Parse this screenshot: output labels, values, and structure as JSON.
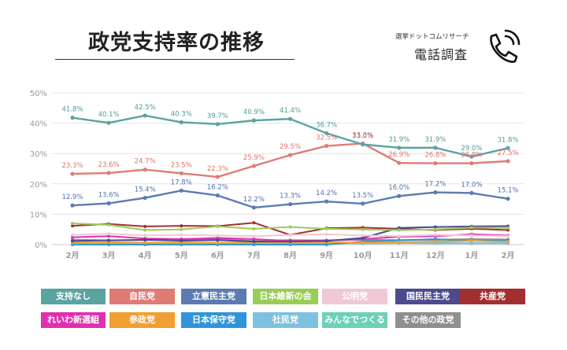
{
  "header": {
    "title": "政党支持率の推移",
    "org": "選挙ドットコムリサーチ",
    "survey": "電話調査",
    "icon": "phone-icon"
  },
  "chart_data": {
    "type": "line",
    "title": "政党支持率の推移",
    "categories": [
      "2月",
      "3月",
      "4月",
      "5月",
      "6月",
      "7月",
      "8月",
      "9月",
      "10月",
      "11月",
      "12月",
      "1月",
      "2月"
    ],
    "y_ticks": [
      "0%",
      "10%",
      "20%",
      "30%",
      "40%",
      "50%"
    ],
    "ylim": [
      0,
      50
    ],
    "grid": true,
    "legend_position": "bottom",
    "series": [
      {
        "name": "支持なし",
        "color": "#5aa3a3",
        "label_color": "#4d9a9a",
        "values": [
          41.8,
          40.1,
          42.5,
          40.3,
          39.7,
          40.9,
          41.4,
          36.7,
          33.0,
          31.9,
          31.9,
          29.0,
          31.8
        ],
        "labels": [
          "41.8%",
          "40.1%",
          "42.5%",
          "40.3%",
          "39.7%",
          "40.9%",
          "41.4%",
          "36.7%",
          "33.0%",
          "31.9%",
          "31.9%",
          "29.0%",
          "31.8%"
        ]
      },
      {
        "name": "自民党",
        "color": "#e07b74",
        "label_color": "#e07068",
        "values": [
          23.3,
          23.6,
          24.7,
          23.5,
          22.3,
          25.9,
          29.5,
          32.5,
          33.3,
          26.9,
          26.8,
          26.8,
          27.5
        ],
        "labels": [
          "23.3%",
          "23.6%",
          "24.7%",
          "23.5%",
          "22.3%",
          "25.9%",
          "29.5%",
          "32.5%",
          "33.3%",
          "26.9%",
          "26.8%",
          "26.8%",
          "27.5%"
        ]
      },
      {
        "name": "立憲民主党",
        "color": "#5b7bb3",
        "label_color": "#4e71ad",
        "values": [
          12.9,
          13.6,
          15.4,
          17.8,
          16.2,
          12.2,
          13.3,
          14.2,
          13.5,
          16.0,
          17.2,
          17.0,
          15.1
        ],
        "labels": [
          "12.9%",
          "13.6%",
          "15.4%",
          "17.8%",
          "16.2%",
          "12.2%",
          "13.3%",
          "14.2%",
          "13.5%",
          "16.0%",
          "17.2%",
          "17.0%",
          "15.1%"
        ]
      },
      {
        "name": "日本維新の会",
        "color": "#9acd57",
        "values": [
          7.0,
          6.5,
          4.8,
          5.0,
          6.0,
          5.2,
          5.8,
          5.2,
          5.0,
          4.8,
          5.0,
          5.6,
          5.5
        ]
      },
      {
        "name": "公明党",
        "color": "#f0c8d4",
        "values": [
          3.2,
          3.6,
          3.0,
          3.2,
          3.0,
          2.8,
          3.2,
          3.4,
          3.0,
          2.8,
          3.2,
          3.0,
          2.8
        ]
      },
      {
        "name": "国民民主党",
        "color": "#4d4a8e",
        "values": [
          1.2,
          1.4,
          1.6,
          1.3,
          1.5,
          1.0,
          1.0,
          1.2,
          2.2,
          5.5,
          5.8,
          6.0,
          6.1
        ]
      },
      {
        "name": "共産党",
        "color": "#a33030",
        "values": [
          6.2,
          6.8,
          6.0,
          6.2,
          6.1,
          7.2,
          3.2,
          5.4,
          5.6,
          5.2,
          4.8,
          5.2,
          4.8
        ]
      },
      {
        "name": "れいわ新選組",
        "color": "#e030b0",
        "values": [
          2.4,
          2.8,
          2.0,
          1.8,
          2.2,
          1.8,
          1.2,
          1.4,
          1.8,
          2.6,
          2.8,
          3.4,
          3.0
        ]
      },
      {
        "name": "参政党",
        "color": "#f0a030",
        "values": [
          0.6,
          0.8,
          0.6,
          0.8,
          0.6,
          0.8,
          0.6,
          0.8,
          0.6,
          0.8,
          1.0,
          1.2,
          1.0
        ]
      },
      {
        "name": "日本保守党",
        "color": "#2f95d8",
        "values": [
          0.0,
          0.0,
          0.0,
          0.0,
          0.0,
          0.0,
          0.0,
          0.0,
          1.0,
          1.4,
          1.8,
          1.2,
          1.4
        ]
      },
      {
        "name": "社民党",
        "color": "#7ec0e0",
        "values": [
          0.5,
          0.4,
          0.6,
          0.5,
          0.4,
          0.6,
          0.4,
          0.5,
          0.4,
          0.5,
          0.4,
          0.5,
          0.4
        ]
      },
      {
        "name": "みんなでつくる党",
        "color": "#6ed0b8",
        "values": [
          0.8,
          0.6,
          0.5,
          0.6,
          0.5,
          0.4,
          0.5,
          0.6,
          0.4,
          0.5,
          0.6,
          0.4,
          0.5
        ]
      },
      {
        "name": "その他の政党",
        "color": "#8f8f8f",
        "values": [
          1.6,
          1.4,
          1.5,
          1.6,
          1.8,
          1.2,
          1.5,
          1.4,
          1.6,
          1.5,
          1.6,
          1.8,
          1.7
        ]
      }
    ]
  }
}
